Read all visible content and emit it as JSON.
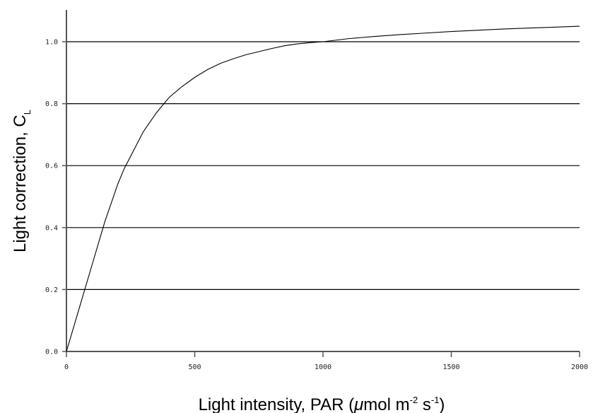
{
  "chart_data": {
    "type": "line",
    "xlabel": "Light intensity, PAR (",
    "xlabel_mu": "μ",
    "xlabel_unit_a": "mol m",
    "xlabel_sup_a": "-2",
    "xlabel_unit_b": " s",
    "xlabel_sup_b": "-1",
    "xlabel_close": ")",
    "ylabel": "Light correction, C",
    "ylabel_sub": "L",
    "xlim": [
      0,
      2000
    ],
    "ylim": [
      0,
      1.1
    ],
    "x_ticks": [
      {
        "value": 0,
        "label": "0"
      },
      {
        "value": 500,
        "label": "500"
      },
      {
        "value": 1000,
        "label": "1000"
      },
      {
        "value": 1500,
        "label": "1500"
      },
      {
        "value": 2000,
        "label": "2000"
      }
    ],
    "y_ticks": [
      {
        "value": 0.0,
        "label": "0.0"
      },
      {
        "value": 0.2,
        "label": "0.2"
      },
      {
        "value": 0.4,
        "label": "0.4"
      },
      {
        "value": 0.6,
        "label": "0.6"
      },
      {
        "value": 0.8,
        "label": "0.8"
      },
      {
        "value": 1.0,
        "label": "1.0"
      }
    ],
    "grid": "horizontal",
    "series": [
      {
        "color": "#000000",
        "x": [
          0,
          25,
          50,
          75,
          100,
          125,
          150,
          175,
          200,
          225,
          250,
          275,
          300,
          350,
          400,
          450,
          500,
          550,
          600,
          650,
          700,
          750,
          800,
          850,
          900,
          950,
          1000,
          1100,
          1200,
          1300,
          1400,
          1500,
          1600,
          1700,
          1800,
          1900,
          2000
        ],
        "y": [
          0.0,
          0.07,
          0.14,
          0.21,
          0.28,
          0.35,
          0.42,
          0.48,
          0.54,
          0.59,
          0.63,
          0.67,
          0.71,
          0.77,
          0.82,
          0.855,
          0.885,
          0.91,
          0.93,
          0.945,
          0.958,
          0.968,
          0.978,
          0.987,
          0.993,
          0.997,
          1.0,
          1.01,
          1.017,
          1.023,
          1.028,
          1.033,
          1.037,
          1.041,
          1.044,
          1.047,
          1.05
        ]
      }
    ]
  }
}
